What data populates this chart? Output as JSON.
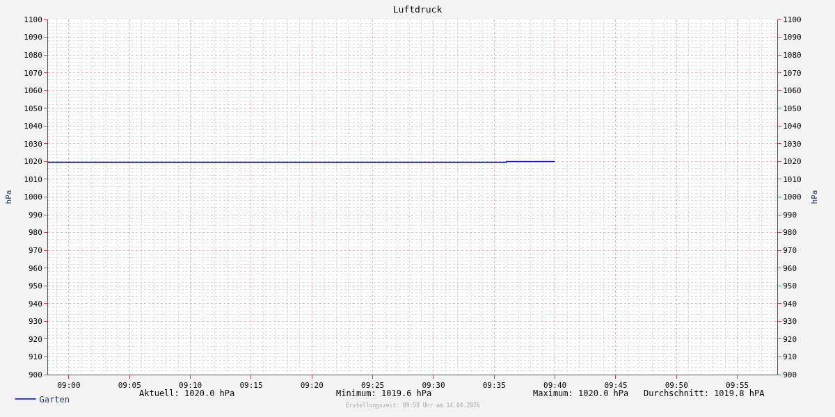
{
  "chart_data": {
    "type": "step",
    "title": "Luftdruck",
    "ylabel": "hPa",
    "y2label": "hPa",
    "x": [
      8.9714,
      9.6,
      9.6667
    ],
    "series": [
      {
        "name": "Garten",
        "color": "#0000bb",
        "values": [
          1019.6,
          1020.0,
          1020.0
        ]
      }
    ],
    "xlim": [
      8.9714,
      9.9714
    ],
    "xticks": [
      {
        "value": 9.0,
        "label": "09:00"
      },
      {
        "value": 9.0833,
        "label": "09:05"
      },
      {
        "value": 9.1667,
        "label": "09:10"
      },
      {
        "value": 9.25,
        "label": "09:15"
      },
      {
        "value": 9.3333,
        "label": "09:20"
      },
      {
        "value": 9.4167,
        "label": "09:25"
      },
      {
        "value": 9.5,
        "label": "09:30"
      },
      {
        "value": 9.5833,
        "label": "09:35"
      },
      {
        "value": 9.6667,
        "label": "09:40"
      },
      {
        "value": 9.75,
        "label": "09:45"
      },
      {
        "value": 9.8333,
        "label": "09:50"
      },
      {
        "value": 9.9167,
        "label": "09:55"
      }
    ],
    "ylim": [
      900,
      1100
    ],
    "yticks": [
      900,
      910,
      920,
      930,
      940,
      950,
      960,
      970,
      980,
      990,
      1000,
      1010,
      1020,
      1030,
      1040,
      1050,
      1060,
      1070,
      1080,
      1090,
      1100
    ],
    "y2lim": [
      900,
      1100
    ],
    "y2ticks": [
      900,
      910,
      920,
      930,
      940,
      950,
      960,
      970,
      980,
      990,
      1000,
      1010,
      1020,
      1030,
      1040,
      1050,
      1060,
      1070,
      1080,
      1090,
      1100
    ],
    "grid": true,
    "legend": "bottom left",
    "line_style": "solid",
    "marker": "none",
    "annotations": [
      "Aktuell: 1020.0 hPa",
      "Minimum: 1019.6 hPa",
      "Maximum: 1020.0 hPa",
      "Durchschnitt: 1019.8 hPA",
      "Erstellungszeit: 09:58 Uhr am 14.04.2026"
    ]
  }
}
